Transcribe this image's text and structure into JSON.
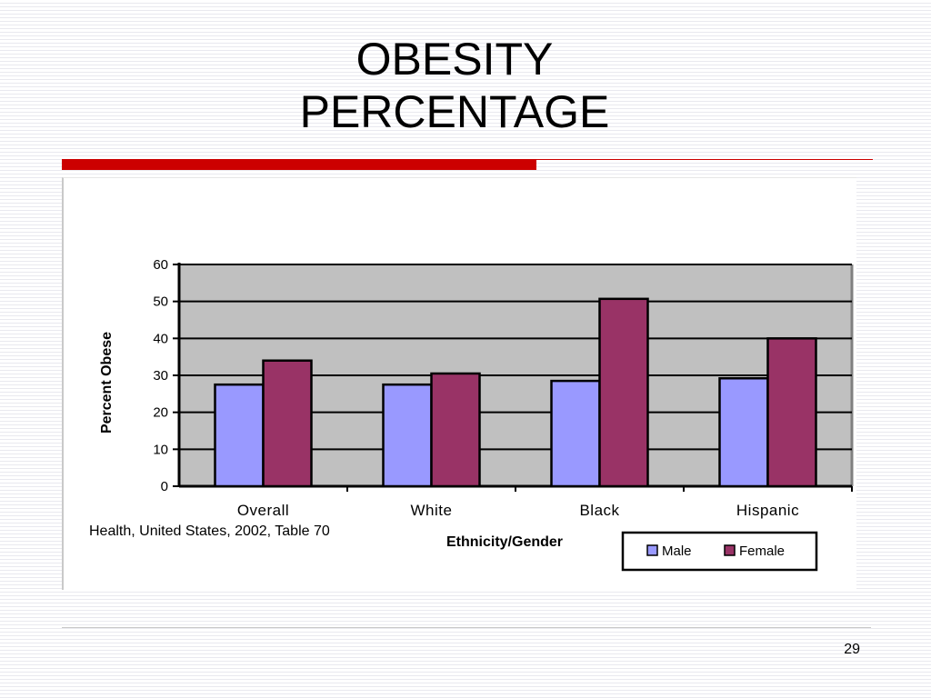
{
  "slide": {
    "title_line1": "OBESITY",
    "title_line2": "PERCENTAGE",
    "page_number": "29",
    "accent_color": "#cc0000"
  },
  "chart_data": {
    "type": "bar",
    "categories": [
      "Overall",
      "White",
      "Black",
      "Hispanic"
    ],
    "series": [
      {
        "name": "Male",
        "values": [
          27.5,
          27.5,
          28.5,
          29.2
        ],
        "color": "#9999ff"
      },
      {
        "name": "Female",
        "values": [
          34,
          30.5,
          50.7,
          40
        ],
        "color": "#993366"
      }
    ],
    "xlabel": "Ethnicity/Gender",
    "ylabel": "Percent Obese",
    "ylim": [
      0,
      60
    ],
    "yticks": [
      0,
      10,
      20,
      30,
      40,
      50,
      60
    ],
    "grid": true,
    "plot_background": "#c0c0c0",
    "legend_position": "bottom-right",
    "source_note": "Health, United States, 2002, Table 70"
  }
}
